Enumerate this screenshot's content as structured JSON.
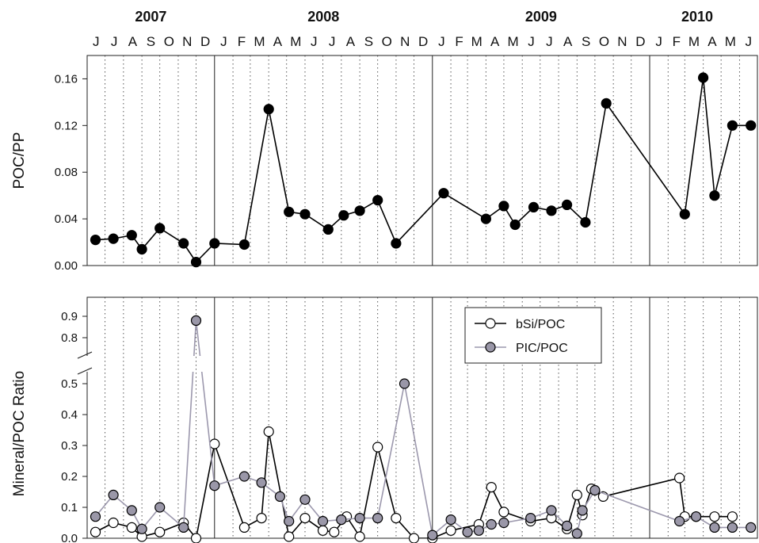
{
  "chart_data": [
    {
      "type": "line",
      "ylabel": "POC/PP",
      "ylim": [
        0,
        0.18
      ],
      "yticks": [
        "0.00",
        "0.04",
        "0.08",
        "0.12",
        "0.16"
      ],
      "grid": "dotted vertical month lines, solid year boundaries",
      "series": [
        {
          "name": "",
          "color": "#000000",
          "marker_fill": "#000000",
          "x": [
            "2007-06-15",
            "2007-07-15",
            "2007-08-15",
            "2007-09-01",
            "2007-10-01",
            "2007-11-10",
            "2007-12-01",
            "2008-01-01",
            "2008-02-20",
            "2008-04-01",
            "2008-05-05",
            "2008-06-01",
            "2008-07-10",
            "2008-08-05",
            "2008-09-01",
            "2008-10-01",
            "2008-11-01",
            "2009-01-20",
            "2009-04-01",
            "2009-05-01",
            "2009-05-20",
            "2009-06-20",
            "2009-07-20",
            "2009-08-15",
            "2009-09-15",
            "2009-10-20",
            "2010-03-01",
            "2010-04-01",
            "2010-04-20",
            "2010-05-20",
            "2010-06-20"
          ],
          "y": [
            0.022,
            0.023,
            0.026,
            0.014,
            0.032,
            0.019,
            0.003,
            0.019,
            0.018,
            0.134,
            0.046,
            0.044,
            0.031,
            0.043,
            0.047,
            0.056,
            0.019,
            0.062,
            0.04,
            0.051,
            0.035,
            0.05,
            0.047,
            0.052,
            0.037,
            0.139,
            0.044,
            0.161,
            0.06,
            0.12,
            0.12
          ]
        }
      ]
    },
    {
      "type": "line",
      "ylabel": "Mineral/POC Ratio",
      "ylim": [
        0,
        0.95
      ],
      "axis_break": [
        0.5,
        0.75
      ],
      "yticks_lower": [
        "0.0",
        "0.1",
        "0.2",
        "0.3",
        "0.4",
        "0.5"
      ],
      "yticks_upper": [
        "0.8",
        "0.9"
      ],
      "legend": "top-center",
      "series": [
        {
          "name": "bSi/POC",
          "color": "#000000",
          "marker_fill": "#ffffff",
          "x": [
            "2007-06-15",
            "2007-07-15",
            "2007-08-15",
            "2007-09-01",
            "2007-10-01",
            "2007-11-10",
            "2007-12-01",
            "2008-01-01",
            "2008-02-20",
            "2008-03-20",
            "2008-04-01",
            "2008-05-05",
            "2008-06-01",
            "2008-07-01",
            "2008-07-20",
            "2008-08-10",
            "2008-09-01",
            "2008-10-01",
            "2008-11-01",
            "2008-12-01",
            "2009-01-01",
            "2009-02-01",
            "2009-03-20",
            "2009-04-10",
            "2009-05-01",
            "2009-06-15",
            "2009-07-20",
            "2009-08-15",
            "2009-09-01",
            "2009-09-10",
            "2009-09-25",
            "2009-10-15",
            "2010-02-20",
            "2010-03-01",
            "2010-03-20",
            "2010-04-20",
            "2010-05-20"
          ],
          "y": [
            0.02,
            0.05,
            0.035,
            0.005,
            0.02,
            0.05,
            0.0,
            0.305,
            0.035,
            0.065,
            0.345,
            0.005,
            0.065,
            0.025,
            0.02,
            0.07,
            0.005,
            0.295,
            0.065,
            0.0,
            0.0,
            0.025,
            0.045,
            0.165,
            0.085,
            0.055,
            0.065,
            0.03,
            0.14,
            0.075,
            0.16,
            0.135,
            0.195,
            0.07,
            0.07,
            0.07,
            0.07
          ]
        },
        {
          "name": "PIC/POC",
          "color": "#9c98ad",
          "marker_fill": "#9a97a8",
          "x": [
            "2007-06-15",
            "2007-07-15",
            "2007-08-15",
            "2007-09-01",
            "2007-10-01",
            "2007-11-10",
            "2007-12-01",
            "2008-01-01",
            "2008-02-20",
            "2008-03-20",
            "2008-04-20",
            "2008-05-05",
            "2008-06-01",
            "2008-07-01",
            "2008-08-01",
            "2008-09-01",
            "2008-10-01",
            "2008-11-15",
            "2009-01-01",
            "2009-02-01",
            "2009-03-01",
            "2009-03-20",
            "2009-04-10",
            "2009-05-01",
            "2009-06-15",
            "2009-07-20",
            "2009-08-15",
            "2009-09-01",
            "2009-09-10",
            "2009-10-01",
            "2010-02-20",
            "2010-03-20",
            "2010-04-20",
            "2010-05-20",
            "2010-06-20"
          ],
          "y": [
            0.07,
            0.14,
            0.09,
            0.03,
            0.1,
            0.035,
            0.88,
            0.17,
            0.2,
            0.18,
            0.135,
            0.055,
            0.125,
            0.055,
            0.06,
            0.065,
            0.065,
            0.5,
            0.01,
            0.06,
            0.02,
            0.025,
            0.045,
            0.05,
            0.065,
            0.09,
            0.04,
            0.015,
            0.09,
            0.155,
            0.055,
            0.07,
            0.035,
            0.035,
            0.035
          ]
        }
      ]
    }
  ],
  "axis": {
    "years": [
      {
        "label": "2007",
        "start": "2007-06-01",
        "end": "2008-01-01"
      },
      {
        "label": "2008",
        "start": "2008-01-01",
        "end": "2009-01-01"
      },
      {
        "label": "2009",
        "start": "2009-01-01",
        "end": "2010-01-01"
      },
      {
        "label": "2010",
        "start": "2010-01-01",
        "end": "2010-07-01"
      }
    ],
    "months": [
      "J",
      "J",
      "A",
      "S",
      "O",
      "N",
      "D",
      "J",
      "F",
      "M",
      "A",
      "M",
      "J",
      "J",
      "A",
      "S",
      "O",
      "N",
      "D",
      "J",
      "F",
      "M",
      "A",
      "M",
      "J",
      "J",
      "A",
      "S",
      "O",
      "N",
      "D",
      "J",
      "F",
      "M",
      "A",
      "M",
      "J"
    ]
  }
}
